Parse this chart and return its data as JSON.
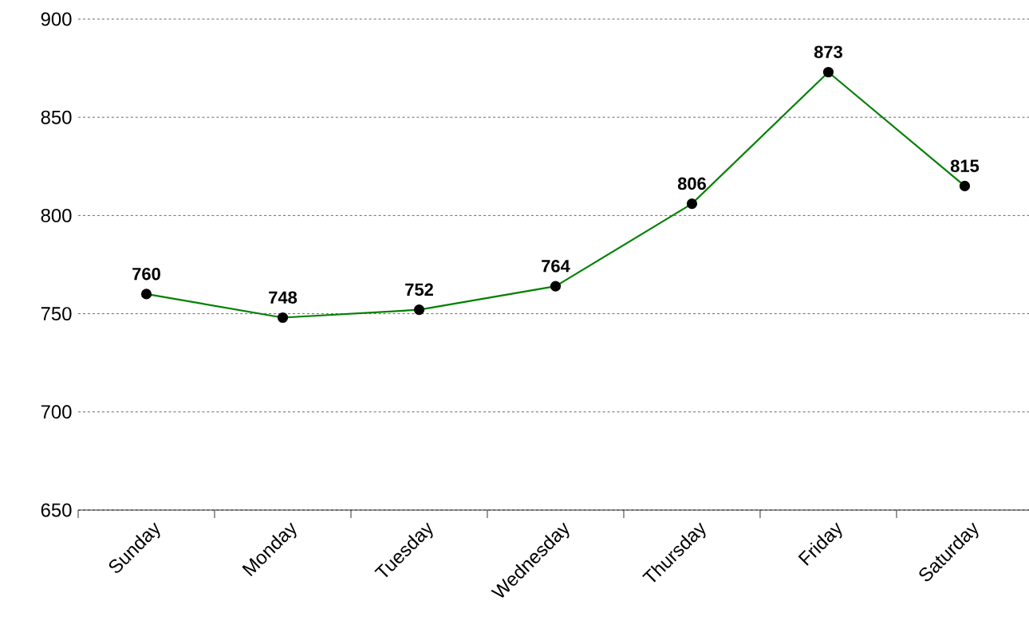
{
  "chart_data": {
    "type": "line",
    "categories": [
      "Sunday",
      "Monday",
      "Tuesday",
      "Wednesday",
      "Thursday",
      "Friday",
      "Saturday"
    ],
    "values": [
      760,
      748,
      752,
      764,
      806,
      873,
      815
    ],
    "color": "#008000",
    "ylim": [
      650,
      900
    ],
    "yticks": [
      650,
      700,
      750,
      800,
      850,
      900
    ],
    "grid": "y",
    "marker": "circle",
    "line_style": "solid",
    "data_labels": true
  }
}
